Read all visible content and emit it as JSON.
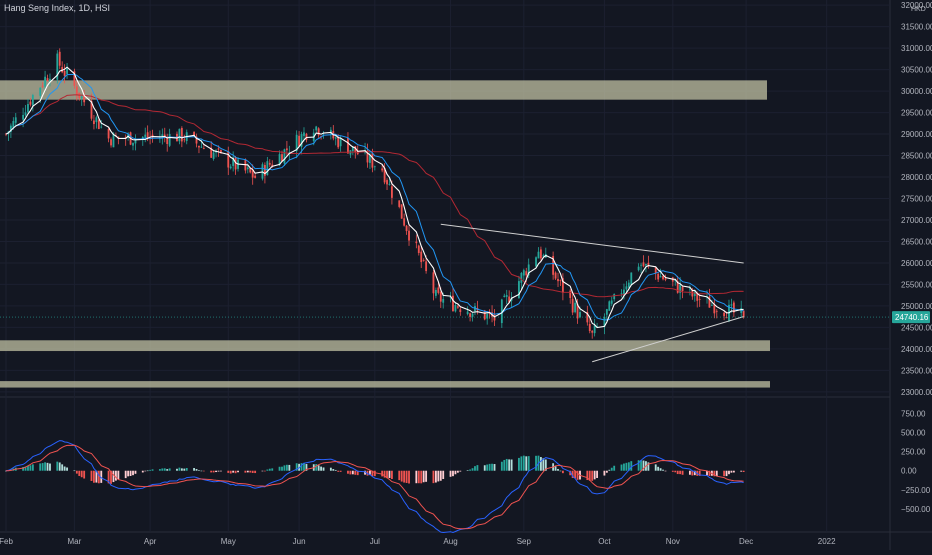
{
  "header": {
    "title": "Hang Seng Index, 1D, HSI"
  },
  "price_axis": {
    "currency": "HKD",
    "ticks": [
      "32000.00",
      "31500.00",
      "31000.00",
      "30500.00",
      "30000.00",
      "29500.00",
      "29000.00",
      "28500.00",
      "28000.00",
      "27500.00",
      "27000.00",
      "26500.00",
      "26000.00",
      "25500.00",
      "25000.00",
      "24500.00",
      "24000.00",
      "23500.00",
      "23000.00"
    ],
    "last_price_label": "24740.16"
  },
  "macd_axis": {
    "ticks": [
      "750.00",
      "500.00",
      "250.00",
      "0.00",
      "−250.00",
      "−500.00"
    ]
  },
  "time_axis": {
    "labels": [
      "Feb",
      "Mar",
      "Apr",
      "May",
      "Jun",
      "Jul",
      "Aug",
      "Sep",
      "Oct",
      "Nov",
      "Dec",
      "2022"
    ]
  },
  "colors": {
    "background": "#131722",
    "up": "#26a69a",
    "down": "#ef5350",
    "zone": "#c8c8a8",
    "ma_fast": "#ffffff",
    "ma_mid": "#2196f3",
    "ma_slow": "#b22833",
    "last_price": "#26a69a",
    "macd_line": "#2962ff",
    "signal_line": "#ef5350"
  },
  "chart_data": {
    "type": "candlestick",
    "title": "Hang Seng Index, 1D, HSI",
    "x_range": [
      "2021-02-01",
      "2022-01-15"
    ],
    "y_range": [
      22950,
      32050
    ],
    "support_resistance_zones": [
      [
        29800,
        30250
      ],
      [
        23950,
        24200
      ],
      [
        23100,
        23250
      ]
    ],
    "trendlines": [
      {
        "from": [
          "2021-07-29",
          26900
        ],
        "to": [
          "2021-11-30",
          26000
        ]
      },
      {
        "from": [
          "2021-09-29",
          23700
        ],
        "to": [
          "2021-11-30",
          24750
        ]
      }
    ],
    "last_price": 24740.16,
    "monthly_close": [
      {
        "date": "2021-02-01",
        "close": 29000
      },
      {
        "date": "2021-02-22",
        "close": 30700
      },
      {
        "date": "2021-03-15",
        "close": 28900
      },
      {
        "date": "2021-04-15",
        "close": 28950
      },
      {
        "date": "2021-05-14",
        "close": 28000
      },
      {
        "date": "2021-06-07",
        "close": 29200
      },
      {
        "date": "2021-07-05",
        "close": 28200
      },
      {
        "date": "2021-07-27",
        "close": 25200
      },
      {
        "date": "2021-08-20",
        "close": 24700
      },
      {
        "date": "2021-09-07",
        "close": 26300
      },
      {
        "date": "2021-09-29",
        "close": 24300
      },
      {
        "date": "2021-10-18",
        "close": 26000
      },
      {
        "date": "2021-11-10",
        "close": 25200
      },
      {
        "date": "2021-11-30",
        "close": 24740
      }
    ],
    "macd_y_range": [
      -750,
      900
    ]
  }
}
